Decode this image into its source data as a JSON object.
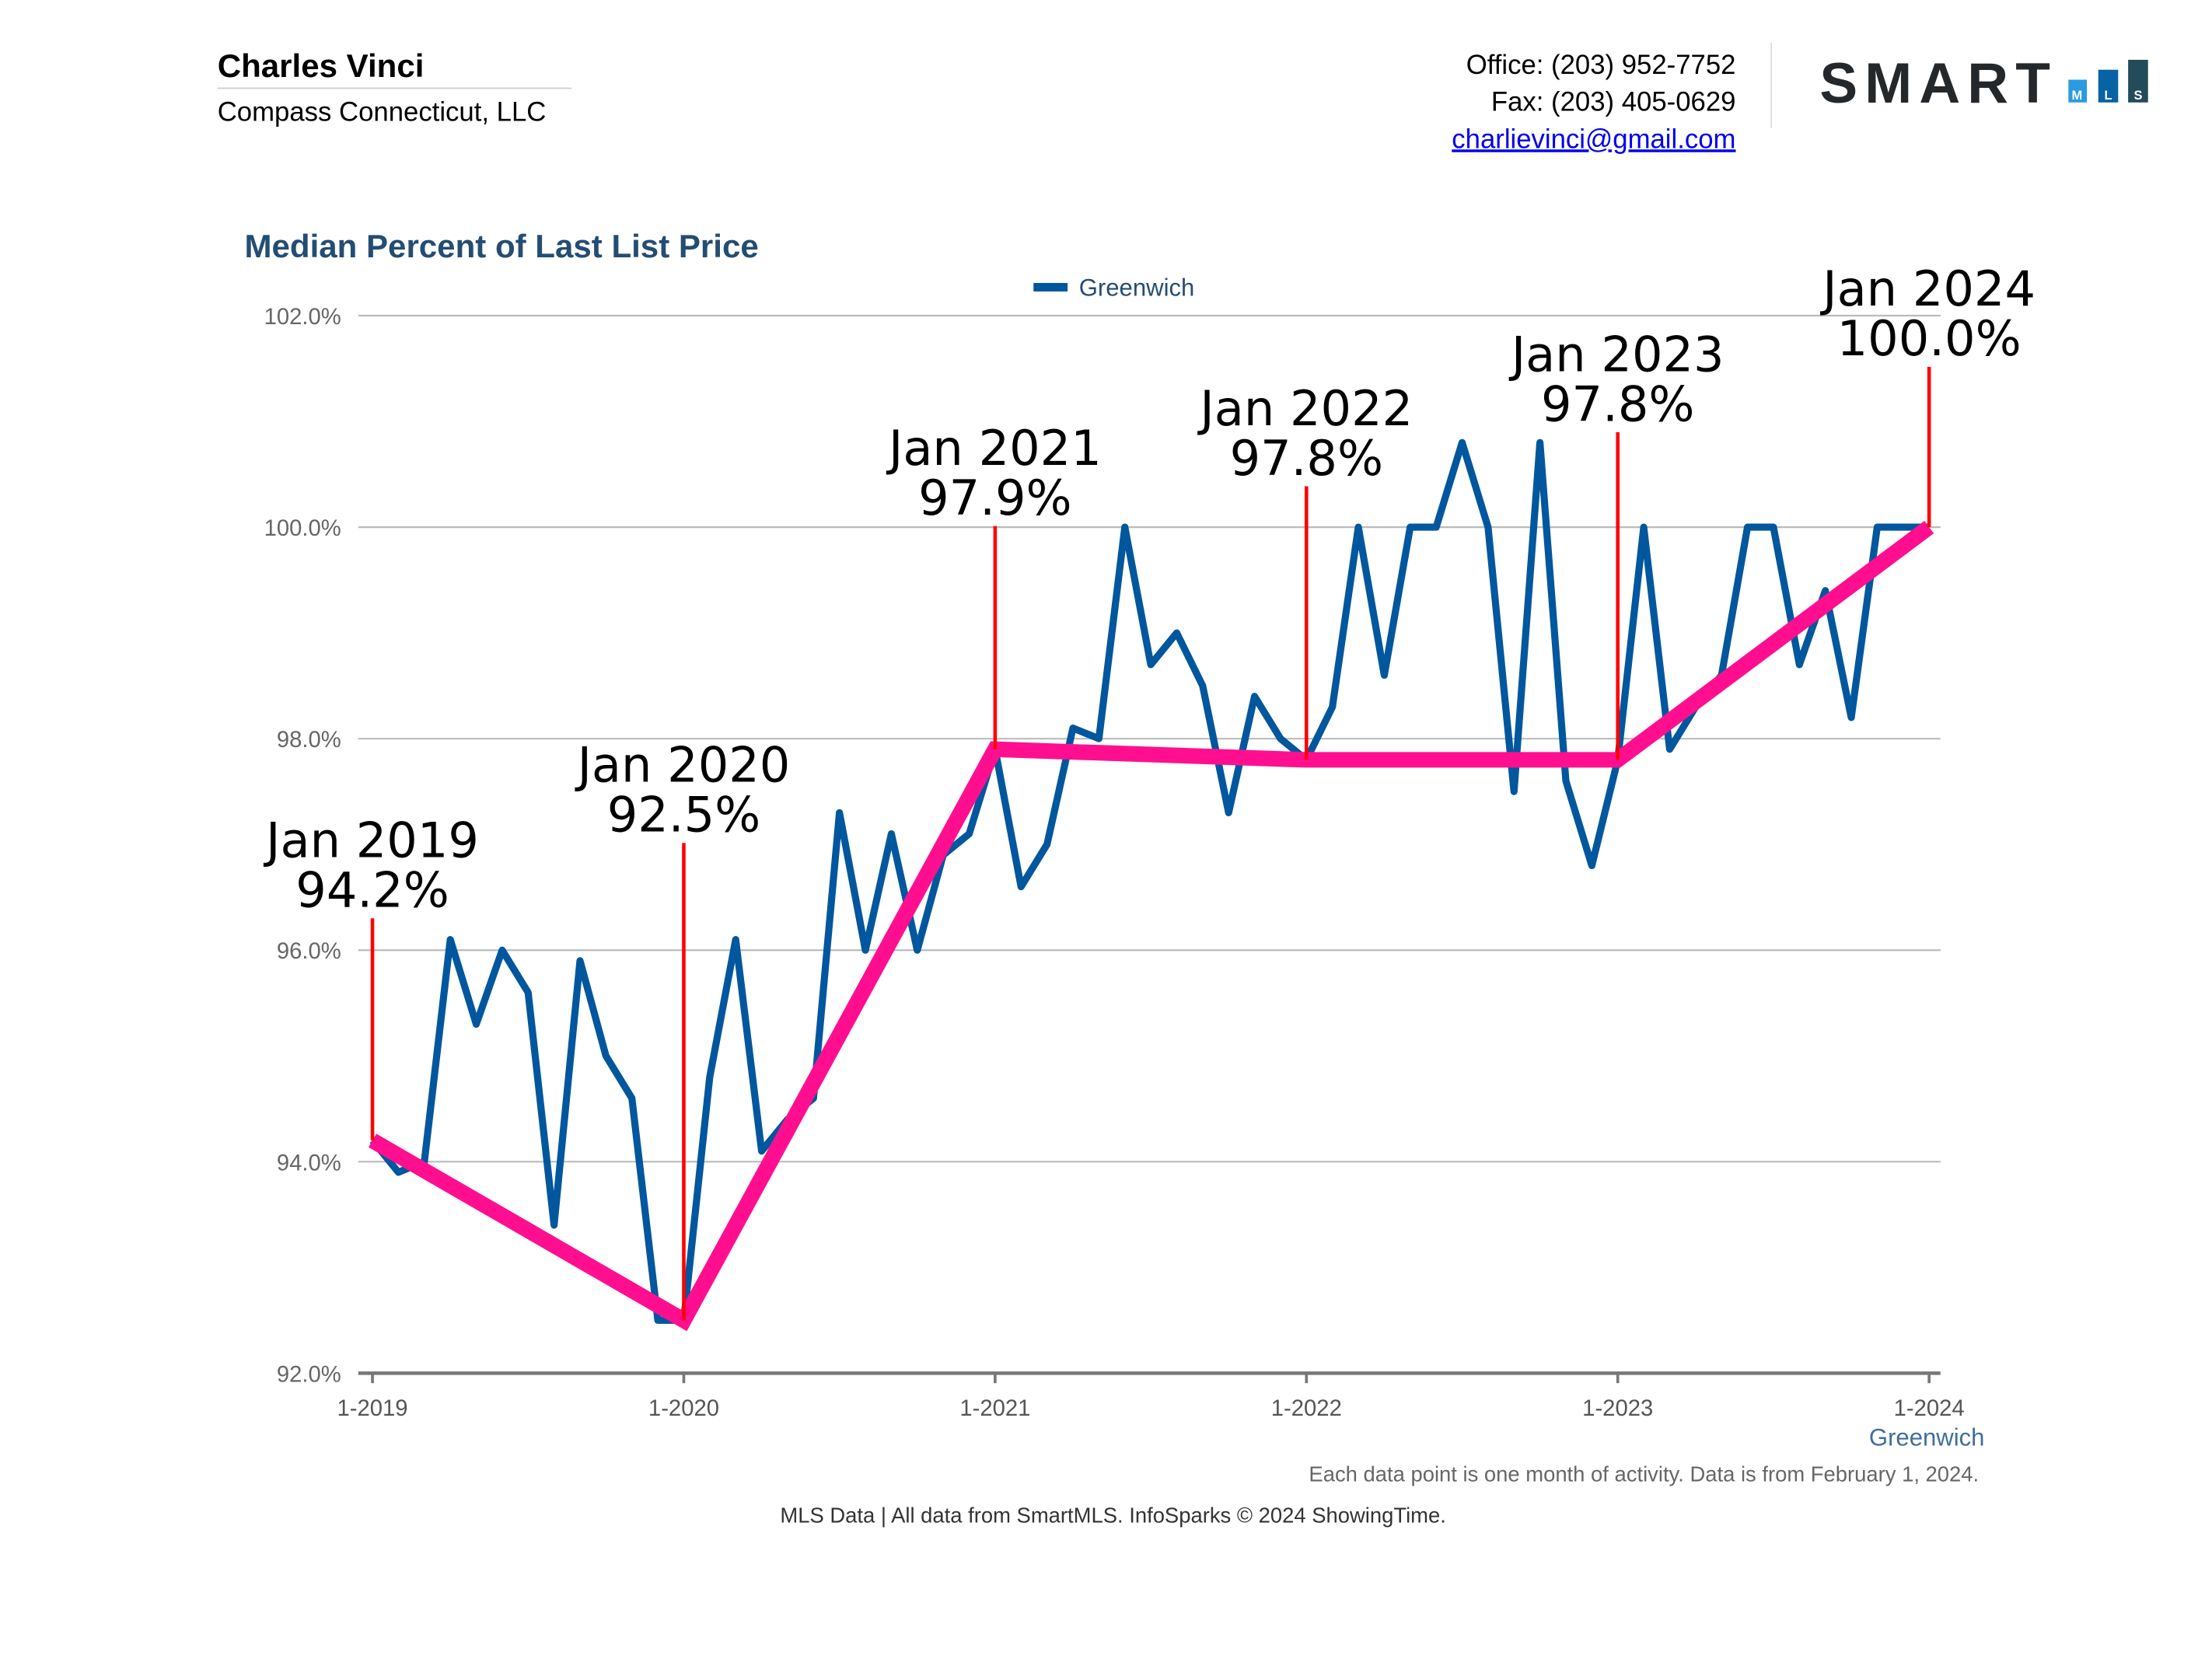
{
  "header": {
    "agent_name": "Charles Vinci",
    "company": "Compass Connecticut, LLC",
    "office": "Office: (203) 952-7752",
    "fax": "Fax: (203) 405-0629",
    "email": "charlievinci@gmail.com",
    "logo_text": "SMART",
    "logo_sub": [
      "M",
      "L",
      "S"
    ]
  },
  "colors": {
    "series": "#00579e",
    "trend": "#ff0f8f",
    "annotation": "#ff0000",
    "title": "#244d73",
    "grid": "#bbbbbb"
  },
  "chart_data": {
    "type": "line",
    "title": "Median Percent of Last List Price",
    "legend": {
      "position": "top-center",
      "entries": [
        "Greenwich"
      ]
    },
    "xlabel": "Greenwich",
    "ylabel": "",
    "ylim": [
      92,
      102
    ],
    "yticks": [
      92,
      94,
      96,
      98,
      100,
      102
    ],
    "ytick_labels": [
      "92.0%",
      "94.0%",
      "96.0%",
      "98.0%",
      "100.0%",
      "102.0%"
    ],
    "xtick_labels": [
      "1-2019",
      "1-2020",
      "1-2021",
      "1-2022",
      "1-2023",
      "1-2024"
    ],
    "grid": true,
    "series": [
      {
        "name": "Greenwich",
        "start": "2019-01",
        "values": [
          94.2,
          93.9,
          94.0,
          96.1,
          95.3,
          96.0,
          95.6,
          93.4,
          95.9,
          95.0,
          94.6,
          92.5,
          92.5,
          94.8,
          96.1,
          94.1,
          94.4,
          94.6,
          97.3,
          96.0,
          97.1,
          96.0,
          96.9,
          97.1,
          97.9,
          96.6,
          97.0,
          98.1,
          98.0,
          100.0,
          98.7,
          99.0,
          98.5,
          97.3,
          98.4,
          98.0,
          97.8,
          98.3,
          100.0,
          98.6,
          100.0,
          100.0,
          100.8,
          100.0,
          97.5,
          100.8,
          97.6,
          96.8,
          97.8,
          100.0,
          97.9,
          98.3,
          98.6,
          100.0,
          100.0,
          98.7,
          99.4,
          98.2,
          100.0,
          100.0,
          100.0
        ]
      }
    ],
    "annotations": [
      {
        "month_index": 0,
        "label": "Jan 2019",
        "value_label": "94.2%",
        "value": 94.2
      },
      {
        "month_index": 12,
        "label": "Jan 2020",
        "value_label": "92.5%",
        "value": 92.5
      },
      {
        "month_index": 24,
        "label": "Jan 2021",
        "value_label": "97.9%",
        "value": 97.9
      },
      {
        "month_index": 36,
        "label": "Jan 2022",
        "value_label": "97.8%",
        "value": 97.8
      },
      {
        "month_index": 48,
        "label": "Jan 2023",
        "value_label": "97.8%",
        "value": 97.8
      },
      {
        "month_index": 60,
        "label": "Jan 2024",
        "value_label": "100.0%",
        "value": 100.0
      }
    ]
  },
  "footer": {
    "note": "Each data point is one month of activity. Data is from February 1, 2024.",
    "credit": "MLS Data | All data from SmartMLS. InfoSparks © 2024 ShowingTime."
  }
}
